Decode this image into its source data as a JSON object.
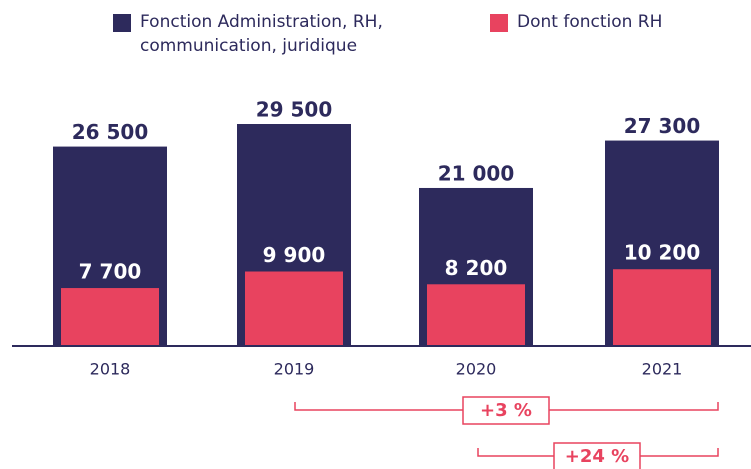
{
  "chart_data": {
    "type": "bar",
    "categories": [
      "2018",
      "2019",
      "2020",
      "2021"
    ],
    "series": [
      {
        "name": "Fonction Administration, RH, communication, juridique",
        "color": "#2d2a5c",
        "values": [
          26500,
          29500,
          21000,
          27300
        ],
        "value_labels": [
          "26 500",
          "29 500",
          "21 000",
          "27 300"
        ]
      },
      {
        "name": "Dont fonction RH",
        "color": "#e8435f",
        "values": [
          7700,
          9900,
          8200,
          10200
        ],
        "value_labels": [
          "7 700",
          "9 900",
          "8 200",
          "10 200"
        ]
      }
    ],
    "annotations": [
      "+3 %",
      "+24 %"
    ]
  }
}
